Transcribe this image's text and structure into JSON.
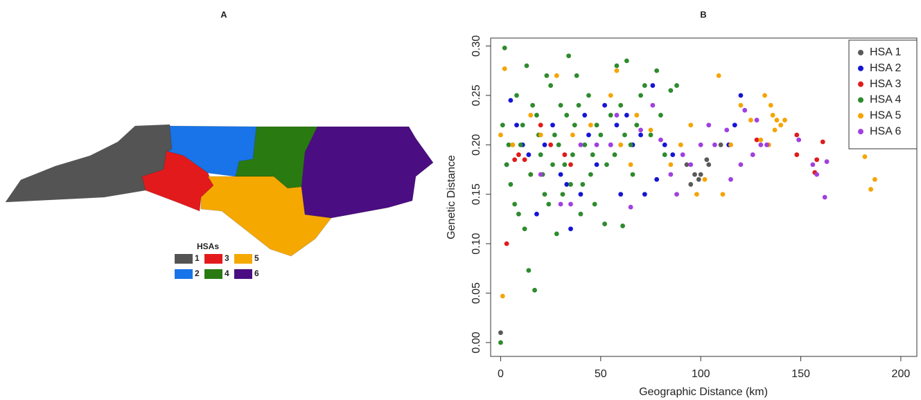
{
  "chart_data": [
    {
      "type": "map",
      "title": "A",
      "legend_title": "HSAs",
      "regions": [
        {
          "label": "1",
          "color": "#545454"
        },
        {
          "label": "2",
          "color": "#1874e8"
        },
        {
          "label": "3",
          "color": "#e31a1c"
        },
        {
          "label": "4",
          "color": "#2a7a12"
        },
        {
          "label": "5",
          "color": "#f5a800"
        },
        {
          "label": "6",
          "color": "#4b0d82"
        }
      ]
    },
    {
      "type": "scatter",
      "title": "B",
      "x_label": "Geographic Distance (km)",
      "y_label": "Genetic Distance",
      "xlim": [
        -5,
        208
      ],
      "ylim": [
        -0.014,
        0.308
      ],
      "xticks": [
        0,
        50,
        100,
        150,
        200
      ],
      "yticks": [
        {
          "value": 0,
          "label": "0.00"
        },
        0.05,
        {
          "value": 0.1,
          "label": "0.10"
        },
        0.15,
        {
          "value": 0.2,
          "label": "0.20"
        },
        0.25,
        {
          "value": 0.3,
          "label": "0.30"
        }
      ],
      "legend": "top-right",
      "series": [
        {
          "name": "HSA 1",
          "color": "#5a5a5a",
          "x": [
            0,
            93,
            95,
            97,
            99,
            100,
            103,
            104,
            110
          ],
          "values": [
            0.01,
            0.18,
            0.16,
            0.17,
            0.165,
            0.17,
            0.185,
            0.18,
            0.2
          ]
        },
        {
          "name": "HSA 2",
          "color": "#1515d6",
          "x": [
            3,
            5,
            8,
            11,
            14,
            18,
            22,
            26,
            30,
            33,
            35,
            40,
            42,
            44,
            48,
            52,
            55,
            58,
            60,
            63,
            66,
            70,
            72,
            76,
            78,
            82,
            86,
            114,
            117,
            120
          ],
          "values": [
            0.18,
            0.245,
            0.22,
            0.2,
            0.19,
            0.13,
            0.2,
            0.22,
            0.17,
            0.16,
            0.115,
            0.15,
            0.23,
            0.21,
            0.18,
            0.24,
            0.2,
            0.22,
            0.15,
            0.23,
            0.2,
            0.21,
            0.15,
            0.26,
            0.165,
            0.2,
            0.19,
            0.2,
            0.22,
            0.25
          ]
        },
        {
          "name": "HSA 3",
          "color": "#e01b1b",
          "x": [
            3,
            7,
            9,
            12,
            15,
            20,
            25,
            32,
            35,
            128,
            148,
            148,
            157,
            158,
            161
          ],
          "values": [
            0.1,
            0.185,
            0.19,
            0.185,
            0.17,
            0.22,
            0.2,
            0.19,
            0.18,
            0.205,
            0.21,
            0.19,
            0.172,
            0.185,
            0.203
          ]
        },
        {
          "name": "HSA 4",
          "color": "#2e8b2e",
          "x": [
            0,
            2,
            1,
            3,
            5,
            7,
            8,
            10,
            12,
            14,
            17,
            15,
            18,
            20,
            22,
            25,
            27,
            28,
            30,
            32,
            34,
            35,
            37,
            38,
            40,
            42,
            44,
            45,
            47,
            50,
            52,
            55,
            57,
            58,
            60,
            61,
            63,
            65,
            68,
            70,
            72,
            75,
            78,
            80,
            82,
            85,
            88,
            6,
            9,
            13,
            21,
            24,
            29,
            33,
            36,
            41,
            48,
            53,
            62,
            66,
            11,
            16,
            19,
            26,
            31,
            39,
            46,
            4,
            23
          ],
          "values": [
            0,
            0.298,
            0.22,
            0.18,
            0.16,
            0.14,
            0.25,
            0.2,
            0.115,
            0.073,
            0.053,
            0.17,
            0.23,
            0.19,
            0.15,
            0.26,
            0.21,
            0.11,
            0.24,
            0.18,
            0.29,
            0.16,
            0.22,
            0.27,
            0.13,
            0.2,
            0.25,
            0.17,
            0.14,
            0.21,
            0.12,
            0.23,
            0.19,
            0.28,
            0.24,
            0.118,
            0.285,
            0.2,
            0.22,
            0.25,
            0.26,
            0.21,
            0.275,
            0.23,
            0.19,
            0.255,
            0.26,
            0.2,
            0.13,
            0.28,
            0.17,
            0.14,
            0.2,
            0.23,
            0.19,
            0.16,
            0.22,
            0.18,
            0.21,
            0.17,
            0.22,
            0.24,
            0.21,
            0.18,
            0.15,
            0.24,
            0.19,
            0.2,
            0.27
          ]
        },
        {
          "name": "HSA 5",
          "color": "#f5a400",
          "x": [
            1,
            2,
            0,
            6,
            15,
            20,
            28,
            36,
            45,
            55,
            58,
            60,
            65,
            68,
            75,
            85,
            90,
            95,
            98,
            102,
            109,
            111,
            115,
            120,
            125,
            130,
            132,
            134,
            135,
            136,
            137,
            138,
            140,
            142,
            182,
            185,
            187
          ],
          "values": [
            0.047,
            0.277,
            0.21,
            0.2,
            0.23,
            0.21,
            0.27,
            0.21,
            0.22,
            0.25,
            0.275,
            0.2,
            0.18,
            0.23,
            0.215,
            0.18,
            0.2,
            0.22,
            0.15,
            0.165,
            0.27,
            0.15,
            0.2,
            0.24,
            0.225,
            0.205,
            0.25,
            0.2,
            0.24,
            0.23,
            0.215,
            0.225,
            0.22,
            0.225,
            0.188,
            0.155,
            0.165
          ]
        },
        {
          "name": "HSA 6",
          "color": "#a040e0",
          "x": [
            20,
            30,
            35,
            40,
            48,
            55,
            58,
            65,
            70,
            76,
            80,
            85,
            88,
            91,
            95,
            100,
            104,
            107,
            113,
            115,
            120,
            122,
            126,
            128,
            130,
            133,
            149,
            156,
            158,
            162,
            163
          ],
          "values": [
            0.17,
            0.14,
            0.14,
            0.2,
            0.2,
            0.2,
            0.23,
            0.137,
            0.215,
            0.24,
            0.205,
            0.17,
            0.15,
            0.19,
            0.18,
            0.2,
            0.22,
            0.2,
            0.215,
            0.165,
            0.18,
            0.235,
            0.19,
            0.225,
            0.2,
            0.2,
            0.205,
            0.18,
            0.17,
            0.147,
            0.183
          ]
        }
      ]
    }
  ]
}
